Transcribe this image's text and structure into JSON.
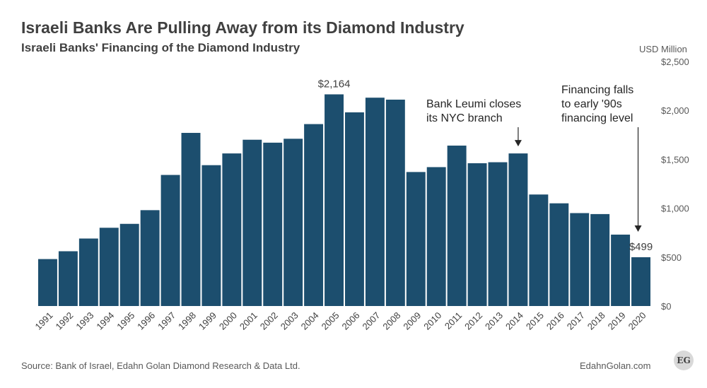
{
  "header": {
    "title": "Israeli Banks Are Pulling Away from its Diamond Industry",
    "subtitle": "Israeli Banks' Financing of the Diamond Industry",
    "unit": "USD Million"
  },
  "footer": {
    "source": "Source: Bank of Israel, Edahn Golan Diamond Research & Data Ltd.",
    "site": "EdahnGolan.com",
    "logo_text": "EG"
  },
  "colors": {
    "bar": "#1c4e6e",
    "text": "#404040"
  },
  "chart_data": {
    "type": "bar",
    "title": "Israeli Banks' Financing of the Diamond Industry",
    "ylabel": "USD Million",
    "ylim": [
      0,
      2500
    ],
    "yticks": [
      0,
      500,
      1000,
      1500,
      2000,
      2500
    ],
    "ytick_labels": [
      "$0",
      "$500",
      "$1,000",
      "$1,500",
      "$2,000",
      "$2,500"
    ],
    "categories": [
      "1991",
      "1992",
      "1993",
      "1994",
      "1995",
      "1996",
      "1997",
      "1998",
      "1999",
      "2000",
      "2001",
      "2002",
      "2003",
      "2004",
      "2005",
      "2006",
      "2007",
      "2008",
      "2009",
      "2010",
      "2011",
      "2012",
      "2013",
      "2014",
      "2015",
      "2016",
      "2017",
      "2018",
      "2019",
      "2020"
    ],
    "values": [
      480,
      560,
      690,
      800,
      840,
      980,
      1340,
      1770,
      1440,
      1560,
      1700,
      1670,
      1710,
      1860,
      2164,
      1980,
      2130,
      2110,
      1370,
      1420,
      1640,
      1460,
      1470,
      1560,
      1140,
      1050,
      950,
      940,
      730,
      499
    ],
    "data_labels": [
      {
        "category": "2005",
        "text": "$2,164"
      },
      {
        "category": "2020",
        "text": "$499"
      }
    ],
    "annotations": [
      {
        "category": "2014",
        "lines": [
          "Bank Leumi closes",
          "its NYC branch"
        ]
      },
      {
        "category": "2020",
        "lines": [
          "Financing falls",
          "to early '90s",
          "financing level"
        ]
      }
    ],
    "grid": false,
    "legend": "none"
  }
}
